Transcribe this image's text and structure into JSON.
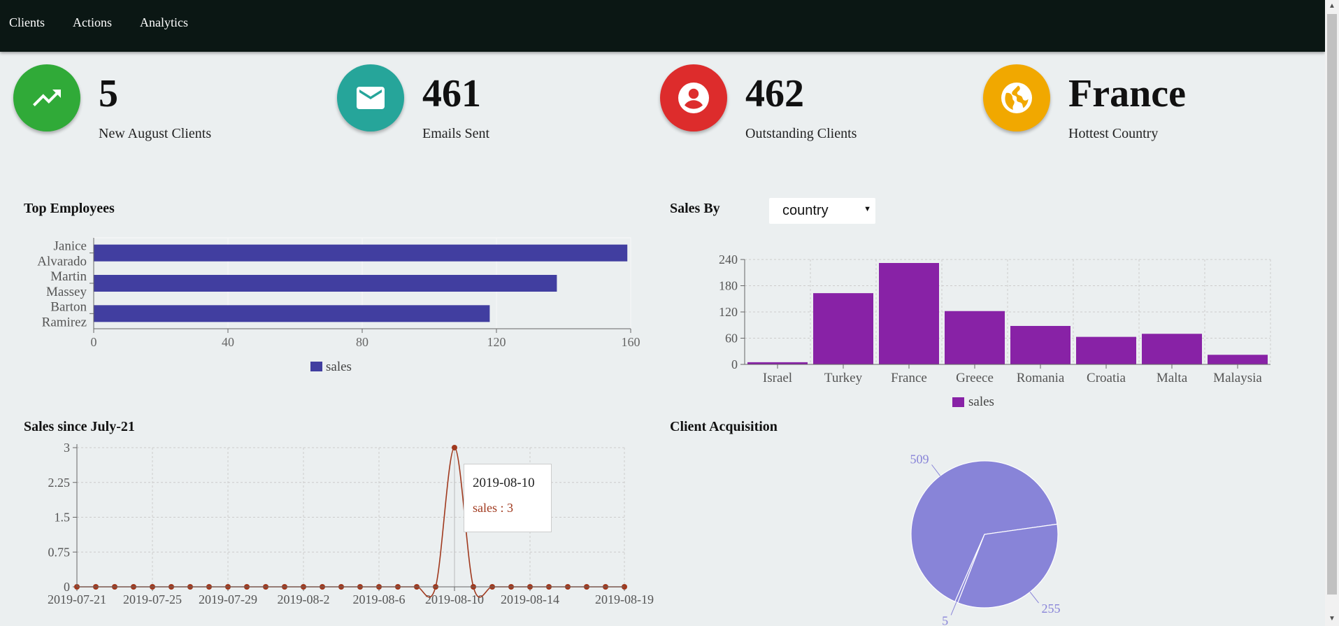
{
  "nav": {
    "items": [
      "Clients",
      "Actions",
      "Analytics"
    ]
  },
  "stats": [
    {
      "value": "5",
      "label": "New August Clients",
      "color": "#30aa38",
      "icon": "trending-up-icon"
    },
    {
      "value": "461",
      "label": "Emails Sent",
      "color": "#26a59a",
      "icon": "mail-icon"
    },
    {
      "value": "462",
      "label": "Outstanding Clients",
      "color": "#dd2c2c",
      "icon": "account-circle-icon"
    },
    {
      "value": "France",
      "label": "Hottest Country",
      "color": "#f1a800",
      "icon": "globe-icon"
    }
  ],
  "top_employees": {
    "title": "Top Employees"
  },
  "sales_by": {
    "title": "Sales By",
    "selected": "country"
  },
  "sales_since": {
    "title": "Sales since July-21",
    "tooltip": {
      "date": "2019-08-10",
      "text": "sales : 3"
    }
  },
  "client_acquisition": {
    "title": "Client Acquisition"
  },
  "chart_data": [
    {
      "id": "top-employees",
      "type": "bar",
      "orientation": "horizontal",
      "categories": [
        [
          "Janice",
          "Alvarado"
        ],
        [
          "Martin",
          "Massey"
        ],
        [
          "Barton",
          "Ramirez"
        ]
      ],
      "series": [
        {
          "name": "sales",
          "values": [
            159,
            138,
            118
          ]
        }
      ],
      "xlim": [
        0,
        160
      ],
      "xticks": [
        "0",
        "40",
        "80",
        "120",
        "160"
      ],
      "color": "#413ea0",
      "legend": "bottom-center"
    },
    {
      "id": "sales-by-country",
      "type": "bar",
      "categories": [
        "Israel",
        "Turkey",
        "France",
        "Greece",
        "Romania",
        "Croatia",
        "Malta",
        "Malaysia"
      ],
      "series": [
        {
          "name": "sales",
          "values": [
            5,
            163,
            232,
            122,
            88,
            63,
            70,
            22
          ]
        }
      ],
      "ylim": [
        0,
        240
      ],
      "yticks": [
        "0",
        "60",
        "120",
        "180",
        "240"
      ],
      "color": "#8822a6",
      "grid": true,
      "legend": "bottom-center"
    },
    {
      "id": "sales-since",
      "type": "line",
      "series": [
        {
          "name": "sales",
          "values": [
            0,
            0,
            0,
            0,
            0,
            0,
            0,
            0,
            0,
            0,
            0,
            0,
            0,
            0,
            0,
            0,
            0,
            0,
            0,
            0,
            3,
            0,
            0,
            0,
            0,
            0,
            0,
            0,
            0,
            0
          ]
        }
      ],
      "xticks": [
        "2019-07-21",
        "2019-07-25",
        "2019-07-29",
        "2019-08-2",
        "2019-08-6",
        "2019-08-10",
        "2019-08-14",
        "2019-08-19"
      ],
      "xtick_positions": [
        0,
        4,
        8,
        12,
        16,
        20,
        24,
        29
      ],
      "ylim": [
        0,
        3
      ],
      "yticks": [
        "0",
        "0.75",
        "1.5",
        "2.25",
        "3"
      ],
      "color": "#a0391e",
      "grid": true
    },
    {
      "id": "client-acquisition",
      "type": "pie",
      "slices": [
        {
          "label": "509",
          "value": 509
        },
        {
          "label": "5",
          "value": 5
        },
        {
          "label": "255",
          "value": 255
        }
      ],
      "color": "#8884d8"
    }
  ],
  "colors": {
    "nav_bg": "#0b1714",
    "page_bg": "#ebeff0",
    "employees_bar": "#413ea0",
    "country_bar": "#8822a6",
    "line": "#a0391e",
    "pie": "#8884d8"
  }
}
